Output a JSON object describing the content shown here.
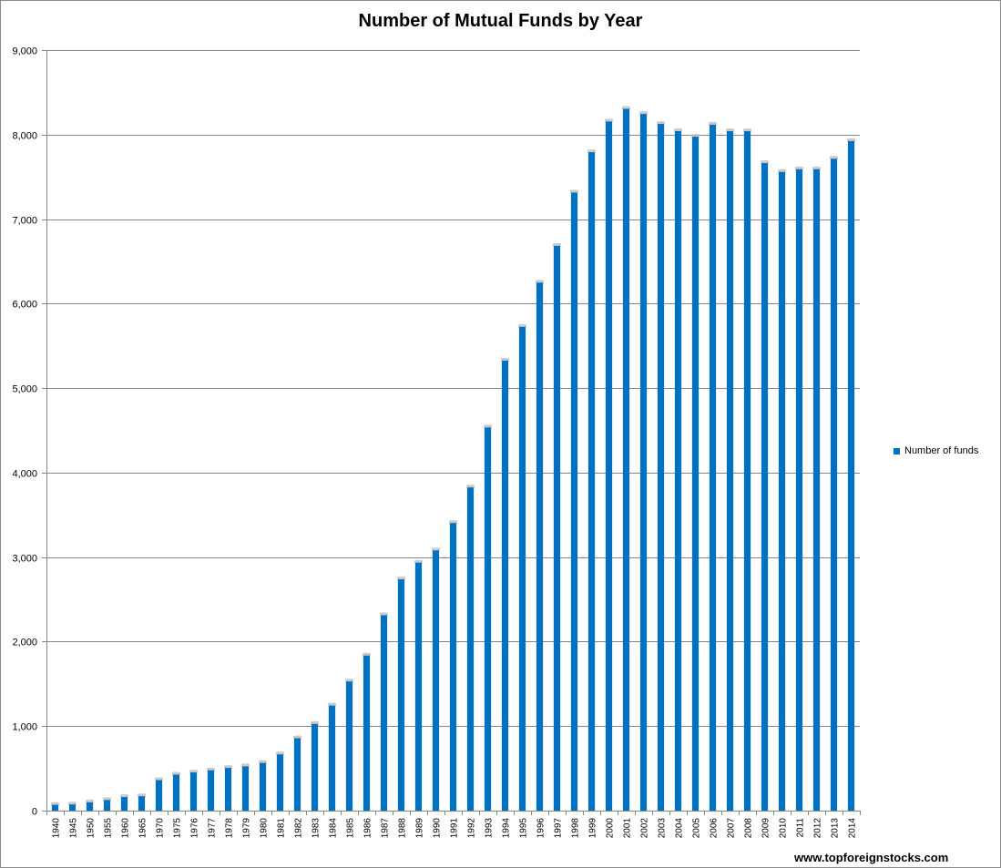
{
  "colors": {
    "bar": "#0070c0",
    "grid": "#868686",
    "axis": "#868686"
  },
  "chart_data": {
    "type": "bar",
    "title": "Number of Mutual Funds by Year",
    "xlabel": "",
    "ylabel": "",
    "ylim": [
      0,
      9000
    ],
    "yticks": [
      0,
      1000,
      2000,
      3000,
      4000,
      5000,
      6000,
      7000,
      8000,
      9000
    ],
    "ytick_labels": [
      "0",
      "1,000",
      "2,000",
      "3,000",
      "4,000",
      "5,000",
      "6,000",
      "7,000",
      "8,000",
      "9,000"
    ],
    "grid": true,
    "legend_position": "right",
    "categories": [
      "1940",
      "1945",
      "1950",
      "1955",
      "1960",
      "1965",
      "1970",
      "1975",
      "1976",
      "1977",
      "1978",
      "1979",
      "1980",
      "1981",
      "1982",
      "1983",
      "1984",
      "1985",
      "1986",
      "1987",
      "1988",
      "1989",
      "1990",
      "1991",
      "1992",
      "1993",
      "1994",
      "1995",
      "1996",
      "1997",
      "1998",
      "1999",
      "2000",
      "2001",
      "2002",
      "2003",
      "2004",
      "2005",
      "2006",
      "2007",
      "2008",
      "2009",
      "2010",
      "2011",
      "2012",
      "2013",
      "2014"
    ],
    "series": [
      {
        "name": "Number of funds",
        "values": [
          68,
          73,
          98,
          125,
          161,
          170,
          361,
          426,
          452,
          477,
          505,
          524,
          564,
          665,
          857,
          1026,
          1243,
          1528,
          1835,
          2312,
          2737,
          2935,
          3079,
          3403,
          3824,
          4534,
          5325,
          5725,
          6248,
          6684,
          7314,
          7791,
          8155,
          8305,
          8244,
          8126,
          8041,
          7975,
          8117,
          8040,
          8040,
          7663,
          7558,
          7590,
          7590,
          7714,
          7923
        ]
      }
    ]
  },
  "watermark": "www.topforeignstocks.com"
}
